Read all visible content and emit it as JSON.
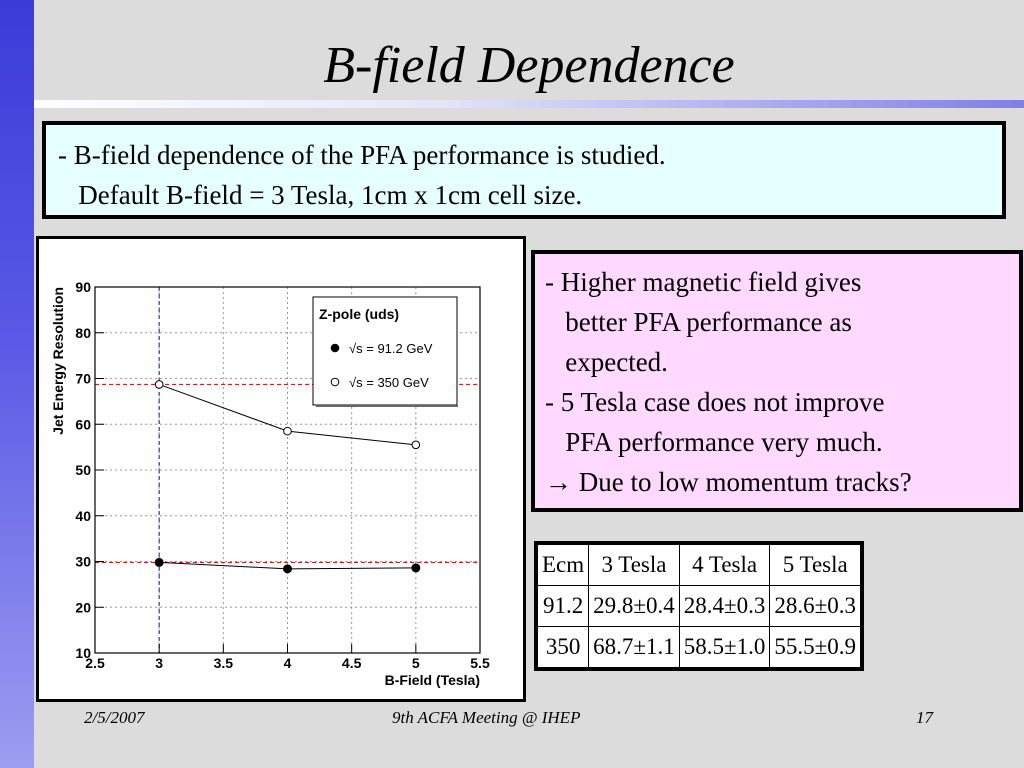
{
  "slide": {
    "title": "B-field Dependence",
    "intro_lines": [
      "- B-field dependence of the PFA performance is studied.",
      "   Default B-field = 3 Tesla, 1cm x 1cm cell size."
    ],
    "notes_lines": [
      "- Higher magnetic field gives",
      "   better PFA performance as",
      "   expected.",
      "- 5 Tesla case does not improve",
      "   PFA performance very much.",
      "→ Due to low momentum tracks?"
    ],
    "table": {
      "headers": [
        "Ecm",
        "3 Tesla",
        "4 Tesla",
        "5 Tesla"
      ],
      "rows": [
        [
          "91.2",
          "29.8±0.4",
          "28.4±0.3",
          "28.6±0.3"
        ],
        [
          "350",
          "68.7±1.1",
          "58.5±1.0",
          "55.5±0.9"
        ]
      ]
    },
    "footer": {
      "date": "2/5/2007",
      "event": "9th ACFA Meeting @ IHEP",
      "page": "17"
    }
  },
  "chart_data": {
    "type": "scatter",
    "xlabel": "B-Field (Tesla)",
    "ylabel": "Jet Energy Resolution",
    "xlim": [
      2.5,
      5.5
    ],
    "ylim": [
      10,
      90
    ],
    "xticks": [
      2.5,
      3,
      3.5,
      4,
      4.5,
      5,
      5.5
    ],
    "yticks": [
      10,
      20,
      30,
      40,
      50,
      60,
      70,
      80,
      90
    ],
    "grid": true,
    "legend": {
      "title": "Z-pole (uds)",
      "placement": "top-right"
    },
    "series": [
      {
        "name": "√s = 91.2 GeV",
        "marker": "filled-circle",
        "x": [
          3,
          4,
          5
        ],
        "values": [
          29.8,
          28.4,
          28.6
        ]
      },
      {
        "name": "√s = 350 GeV",
        "marker": "open-circle",
        "x": [
          3,
          4,
          5
        ],
        "values": [
          68.7,
          58.5,
          55.5
        ]
      }
    ],
    "reference_lines": [
      {
        "orientation": "vertical",
        "value": 3,
        "color": "#3333cc"
      },
      {
        "orientation": "horizontal",
        "value": 68.7,
        "color": "#cc2222"
      },
      {
        "orientation": "horizontal",
        "value": 29.8,
        "color": "#cc2222"
      }
    ]
  }
}
